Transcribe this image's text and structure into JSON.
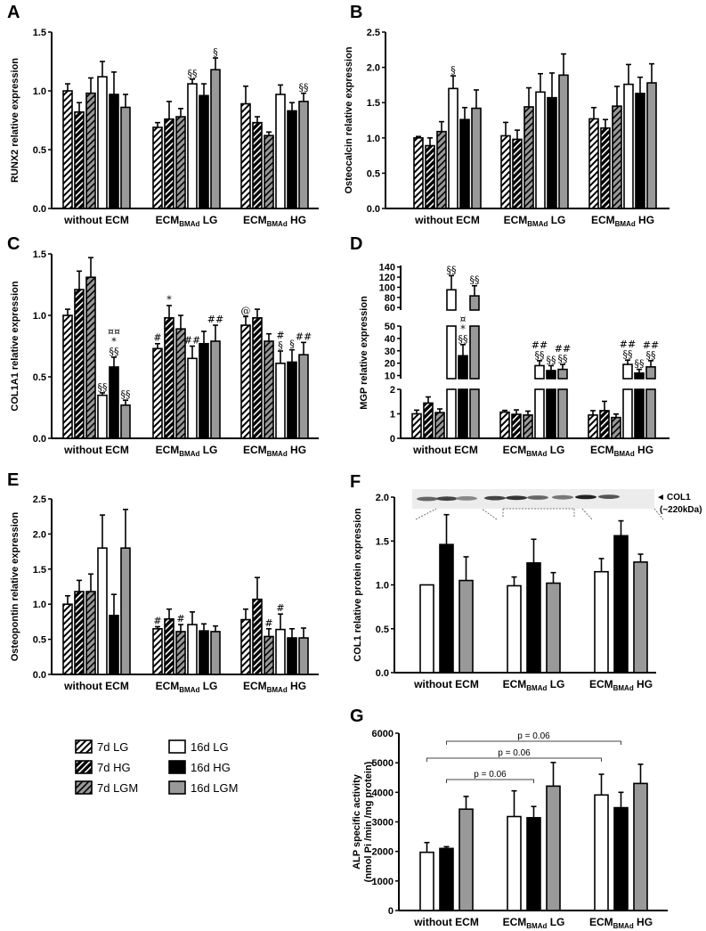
{
  "legend": [
    {
      "key": "d7lg",
      "label": "7d LG"
    },
    {
      "key": "d7hg",
      "label": "7d HG"
    },
    {
      "key": "d7lgm",
      "label": "7d LGM"
    },
    {
      "key": "d16lg",
      "label": "16d LG"
    },
    {
      "key": "d16hg",
      "label": "16d HG"
    },
    {
      "key": "d16lgm",
      "label": "16d LGM"
    }
  ],
  "chart_data": [
    {
      "panel": "A",
      "type": "bar",
      "ylabel": "RUNX2 relative expression",
      "ylim": [
        0,
        1.5
      ],
      "ticks": [
        0,
        0.5,
        1.0,
        1.5
      ],
      "tick_labels": [
        "0.0",
        "0.5",
        "1.0",
        "1.5"
      ],
      "categories": [
        {
          "main": "without ECM",
          "sub": "",
          "suffix": ""
        },
        {
          "main": "ECM",
          "sub": "BMAd",
          "suffix": " LG"
        },
        {
          "main": "ECM",
          "sub": "BMAd",
          "suffix": " HG"
        }
      ],
      "series_keys": [
        "d7lg",
        "d7hg",
        "d7lgm",
        "d16lg",
        "d16hg",
        "d16lgm"
      ],
      "values": [
        [
          1.0,
          0.82,
          0.98,
          1.12,
          0.97,
          0.86
        ],
        [
          0.69,
          0.76,
          0.78,
          1.06,
          0.96,
          1.18
        ],
        [
          0.89,
          0.73,
          0.62,
          0.97,
          0.83,
          0.91
        ]
      ],
      "errors": [
        [
          0.06,
          0.08,
          0.13,
          0.13,
          0.19,
          0.11
        ],
        [
          0.04,
          0.15,
          0.07,
          0.04,
          0.1,
          0.1
        ],
        [
          0.15,
          0.05,
          0.03,
          0.08,
          0.07,
          0.07
        ]
      ],
      "annotations": [
        [
          [],
          [],
          [],
          [],
          [],
          []
        ],
        [
          [],
          [],
          [],
          [
            "§§"
          ],
          [],
          [
            "§"
          ]
        ],
        [
          [],
          [],
          [],
          [],
          [],
          [
            "§§"
          ]
        ]
      ]
    },
    {
      "panel": "B",
      "type": "bar",
      "ylabel": "Osteocalcin relative expression",
      "ylim": [
        0,
        2.5
      ],
      "ticks": [
        0,
        0.5,
        1.0,
        1.5,
        2.0,
        2.5
      ],
      "tick_labels": [
        "0.0",
        "0.5",
        "1.0",
        "1.5",
        "2.0",
        "2.5"
      ],
      "categories": [
        {
          "main": "without ECM",
          "sub": "",
          "suffix": ""
        },
        {
          "main": "ECM",
          "sub": "BMAd",
          "suffix": " LG"
        },
        {
          "main": "ECM",
          "sub": "BMAd",
          "suffix": " HG"
        }
      ],
      "series_keys": [
        "d7lg",
        "d7hg",
        "d7lgm",
        "d16lg",
        "d16hg",
        "d16lgm"
      ],
      "values": [
        [
          1.0,
          0.89,
          1.09,
          1.7,
          1.26,
          1.42
        ],
        [
          1.03,
          0.98,
          1.44,
          1.65,
          1.57,
          1.89
        ],
        [
          1.27,
          1.14,
          1.45,
          1.76,
          1.63,
          1.78
        ]
      ],
      "errors": [
        [
          0.02,
          0.11,
          0.14,
          0.18,
          0.17,
          0.26
        ],
        [
          0.19,
          0.13,
          0.27,
          0.26,
          0.35,
          0.3
        ],
        [
          0.16,
          0.12,
          0.28,
          0.28,
          0.23,
          0.27
        ]
      ],
      "annotations": [
        [
          [],
          [],
          [],
          [
            "§"
          ],
          [],
          []
        ],
        [
          [],
          [],
          [],
          [],
          [],
          []
        ],
        [
          [],
          [],
          [],
          [],
          [],
          []
        ]
      ]
    },
    {
      "panel": "C",
      "type": "bar",
      "ylabel": "COL1A1 relative expression",
      "ylim": [
        0,
        1.5
      ],
      "ticks": [
        0,
        0.5,
        1.0,
        1.5
      ],
      "tick_labels": [
        "0.0",
        "0.5",
        "1.0",
        "1.5"
      ],
      "categories": [
        {
          "main": "without ECM",
          "sub": "",
          "suffix": ""
        },
        {
          "main": "ECM",
          "sub": "BMAd",
          "suffix": " LG"
        },
        {
          "main": "ECM",
          "sub": "BMAd",
          "suffix": " HG"
        }
      ],
      "series_keys": [
        "d7lg",
        "d7hg",
        "d7lgm",
        "d16lg",
        "d16hg",
        "d16lgm"
      ],
      "values": [
        [
          1.0,
          1.21,
          1.31,
          0.35,
          0.58,
          0.27
        ],
        [
          0.73,
          0.98,
          0.89,
          0.65,
          0.77,
          0.79
        ],
        [
          0.92,
          0.98,
          0.79,
          0.61,
          0.62,
          0.68
        ]
      ],
      "errors": [
        [
          0.05,
          0.15,
          0.16,
          0.02,
          0.08,
          0.04
        ],
        [
          0.04,
          0.1,
          0.11,
          0.1,
          0.1,
          0.13
        ],
        [
          0.07,
          0.07,
          0.06,
          0.1,
          0.1,
          0.1
        ]
      ],
      "annotations": [
        [
          [],
          [],
          [],
          [
            "§§"
          ],
          [
            "¤¤",
            "*",
            "§§"
          ],
          [
            "§§"
          ]
        ],
        [
          [
            "#"
          ],
          [
            "*"
          ],
          [],
          [
            "##"
          ],
          [],
          [
            "##"
          ]
        ],
        [
          [
            "@"
          ],
          [],
          [],
          [
            "#",
            "§"
          ],
          [
            "§"
          ],
          [
            "##"
          ]
        ]
      ]
    },
    {
      "panel": "D",
      "type": "bar",
      "ylabel": "MGP relative expression",
      "ylim": [
        0,
        143
      ],
      "axis_break": [
        [
          0,
          2
        ],
        [
          7.5,
          50
        ],
        [
          55,
          143
        ]
      ],
      "ticks": [
        0,
        1,
        2,
        10,
        20,
        30,
        40,
        50,
        60,
        80,
        100,
        120,
        140
      ],
      "tick_labels": [
        "0",
        "1",
        "2",
        "10",
        "20",
        "30",
        "40",
        "50",
        "60",
        "80",
        "100",
        "120",
        "140"
      ],
      "categories": [
        {
          "main": "without ECM",
          "sub": "",
          "suffix": ""
        },
        {
          "main": "ECM",
          "sub": "BMAd",
          "suffix": " LG"
        },
        {
          "main": "ECM",
          "sub": "BMAd",
          "suffix": " HG"
        }
      ],
      "series_keys": [
        "d7lg",
        "d7hg",
        "d7lgm",
        "d16lg",
        "d16hg",
        "d16lgm"
      ],
      "values": [
        [
          1.0,
          1.44,
          1.05,
          95,
          26,
          83
        ],
        [
          1.07,
          0.98,
          0.95,
          18,
          14,
          15
        ],
        [
          0.95,
          1.13,
          0.85,
          19,
          12,
          17
        ]
      ],
      "errors": [
        [
          0.15,
          0.25,
          0.15,
          28,
          9,
          20
        ],
        [
          0.07,
          0.18,
          0.16,
          4,
          4,
          4
        ],
        [
          0.18,
          0.38,
          0.14,
          3.5,
          3,
          5
        ]
      ],
      "annotations": [
        [
          [],
          [],
          [],
          [
            "§§"
          ],
          [
            "¤",
            "*",
            "§§"
          ],
          [
            "§§"
          ]
        ],
        [
          [],
          [],
          [],
          [
            "##",
            "§§"
          ],
          [
            "§§"
          ],
          [
            "##",
            "§§"
          ]
        ],
        [
          [],
          [],
          [],
          [
            "##",
            "§§"
          ],
          [
            "§§"
          ],
          [
            "##",
            "§§"
          ]
        ]
      ]
    },
    {
      "panel": "E",
      "type": "bar",
      "ylabel": "Osteopontin relative expression",
      "ylim": [
        0,
        2.5
      ],
      "ticks": [
        0,
        0.5,
        1.0,
        1.5,
        2.0,
        2.5
      ],
      "tick_labels": [
        "0.0",
        "0.5",
        "1.0",
        "1.5",
        "2.0",
        "2.5"
      ],
      "categories": [
        {
          "main": "without ECM",
          "sub": "",
          "suffix": ""
        },
        {
          "main": "ECM",
          "sub": "BMAd",
          "suffix": " LG"
        },
        {
          "main": "ECM",
          "sub": "BMAd",
          "suffix": " HG"
        }
      ],
      "series_keys": [
        "d7lg",
        "d7hg",
        "d7lgm",
        "d16lg",
        "d16hg",
        "d16lgm"
      ],
      "values": [
        [
          1.0,
          1.18,
          1.18,
          1.8,
          0.84,
          1.8
        ],
        [
          0.65,
          0.79,
          0.61,
          0.71,
          0.62,
          0.61
        ],
        [
          0.78,
          1.07,
          0.54,
          0.64,
          0.52,
          0.52
        ]
      ],
      "errors": [
        [
          0.12,
          0.16,
          0.25,
          0.47,
          0.3,
          0.55
        ],
        [
          0.03,
          0.14,
          0.1,
          0.18,
          0.1,
          0.08
        ],
        [
          0.15,
          0.31,
          0.11,
          0.22,
          0.13,
          0.14
        ]
      ],
      "annotations": [
        [
          [],
          [],
          [],
          [],
          [],
          []
        ],
        [
          [
            "#"
          ],
          [],
          [
            "#"
          ],
          [],
          [],
          []
        ],
        [
          [],
          [],
          [
            "#"
          ],
          [
            "#"
          ],
          [],
          []
        ]
      ]
    },
    {
      "panel": "F",
      "type": "bar",
      "ylabel": "COL1  relative protein expression",
      "ylim": [
        0,
        2.0
      ],
      "ticks": [
        0,
        0.5,
        1.0,
        1.5,
        2.0
      ],
      "tick_labels": [
        "0.0",
        "0.5",
        "1.0",
        "1.5",
        "2.0"
      ],
      "categories": [
        {
          "main": "without ECM",
          "sub": "",
          "suffix": ""
        },
        {
          "main": "ECM",
          "sub": "BMAd",
          "suffix": " LG"
        },
        {
          "main": "ECM",
          "sub": "BMAd",
          "suffix": " HG"
        }
      ],
      "series_keys": [
        "d16lg",
        "d16hg",
        "d16lgm"
      ],
      "values": [
        [
          1.0,
          1.46,
          1.05
        ],
        [
          0.99,
          1.25,
          1.02
        ],
        [
          1.15,
          1.56,
          1.26
        ]
      ],
      "errors": [
        [
          0,
          0.34,
          0.27
        ],
        [
          0.1,
          0.27,
          0.12
        ],
        [
          0.15,
          0.17,
          0.09
        ]
      ],
      "annotations": [
        [
          [],
          [],
          []
        ],
        [
          [],
          [],
          []
        ],
        [
          [],
          [],
          []
        ]
      ],
      "blot": {
        "band_label": "COL1",
        "size_label": "(~220kDa)"
      }
    },
    {
      "panel": "G",
      "type": "bar",
      "ylabel": "ALP specific activity",
      "ylabel2": "(nmol Pi /min /mg protein)",
      "ylim": [
        0,
        6000
      ],
      "ticks": [
        0,
        1000,
        2000,
        3000,
        4000,
        5000,
        6000
      ],
      "tick_labels": [
        "0",
        "1000",
        "2000",
        "3000",
        "4000",
        "5000",
        "6000"
      ],
      "categories": [
        {
          "main": "without ECM",
          "sub": "",
          "suffix": ""
        },
        {
          "main": "ECM",
          "sub": "BMAd",
          "suffix": " LG"
        },
        {
          "main": "ECM",
          "sub": "BMAd",
          "suffix": " HG"
        }
      ],
      "series_keys": [
        "d16lg",
        "d16hg",
        "d16lgm"
      ],
      "values": [
        [
          1970,
          2100,
          3430
        ],
        [
          3180,
          3140,
          4210
        ],
        [
          3910,
          3480,
          4300
        ]
      ],
      "errors": [
        [
          330,
          60,
          430
        ],
        [
          870,
          380,
          800
        ],
        [
          700,
          520,
          650
        ]
      ],
      "annotations": [
        [
          [],
          [],
          []
        ],
        [
          [],
          [],
          []
        ],
        [
          [],
          [],
          []
        ]
      ],
      "brackets": [
        {
          "from": [
            0,
            1
          ],
          "to": [
            2,
            1
          ],
          "label": "p = 0.06"
        },
        {
          "from": [
            0,
            0
          ],
          "to": [
            2,
            0
          ],
          "label": "p = 0.06"
        },
        {
          "from": [
            0,
            1
          ],
          "to": [
            1,
            1
          ],
          "label": "p = 0.06"
        }
      ]
    }
  ]
}
